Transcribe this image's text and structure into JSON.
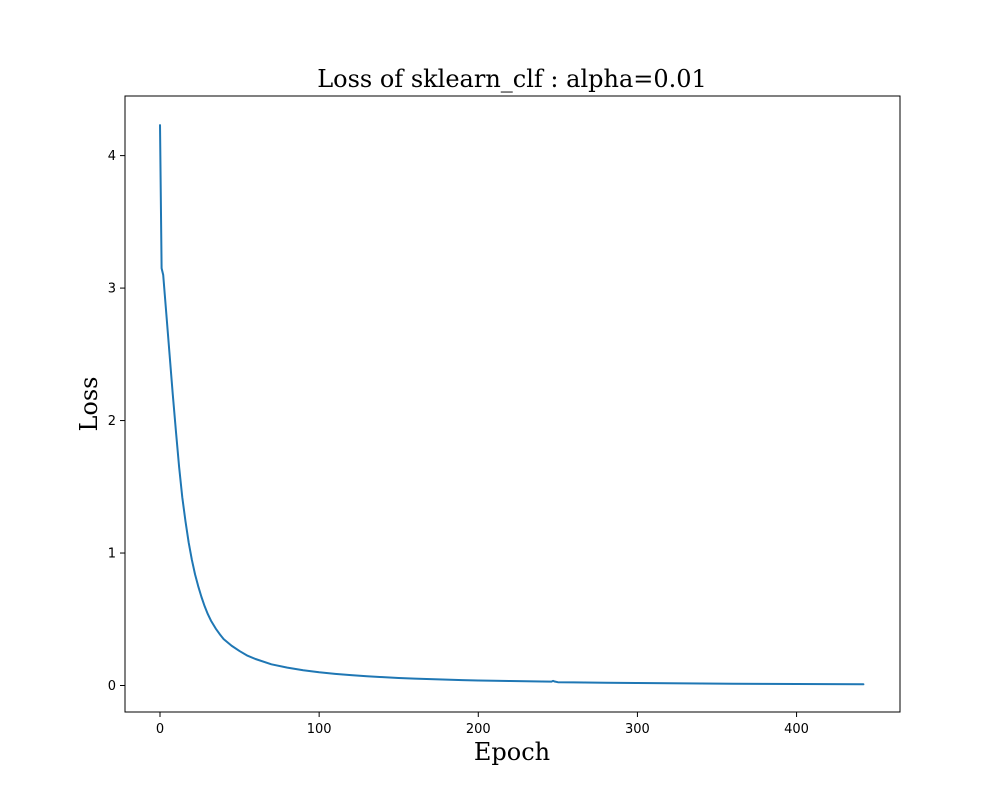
{
  "chart_data": {
    "type": "line",
    "title": "Loss of sklearn_clf : alpha=0.01",
    "xlabel": "Epoch",
    "ylabel": "Loss",
    "xlim": [
      -22,
      465
    ],
    "ylim": [
      -0.2,
      4.45
    ],
    "xticks": [
      0,
      100,
      200,
      300,
      400
    ],
    "yticks": [
      0,
      1,
      2,
      3,
      4
    ],
    "grid": false,
    "legend": "none",
    "line_color": "#1f77b4",
    "series": [
      {
        "x": [
          0,
          1,
          2,
          3,
          4,
          5,
          6,
          8,
          10,
          12,
          14,
          16,
          18,
          20,
          22,
          24,
          26,
          28,
          30,
          32,
          35,
          38,
          40,
          45,
          50,
          55,
          60,
          70,
          80,
          90,
          100,
          110,
          120,
          130,
          140,
          150,
          160,
          170,
          180,
          190,
          200,
          210,
          220,
          230,
          240,
          246,
          247,
          248,
          250,
          260,
          280,
          300,
          320,
          340,
          360,
          380,
          400,
          420,
          442
        ],
        "y": [
          4.23,
          3.15,
          3.1,
          2.95,
          2.8,
          2.65,
          2.5,
          2.2,
          1.92,
          1.65,
          1.42,
          1.24,
          1.08,
          0.95,
          0.84,
          0.75,
          0.67,
          0.6,
          0.54,
          0.49,
          0.43,
          0.38,
          0.35,
          0.3,
          0.26,
          0.225,
          0.2,
          0.16,
          0.135,
          0.115,
          0.1,
          0.088,
          0.078,
          0.07,
          0.063,
          0.057,
          0.052,
          0.048,
          0.044,
          0.041,
          0.038,
          0.036,
          0.034,
          0.032,
          0.03,
          0.029,
          0.035,
          0.03,
          0.025,
          0.024,
          0.021,
          0.019,
          0.017,
          0.015,
          0.013,
          0.012,
          0.011,
          0.01,
          0.009
        ]
      }
    ]
  }
}
